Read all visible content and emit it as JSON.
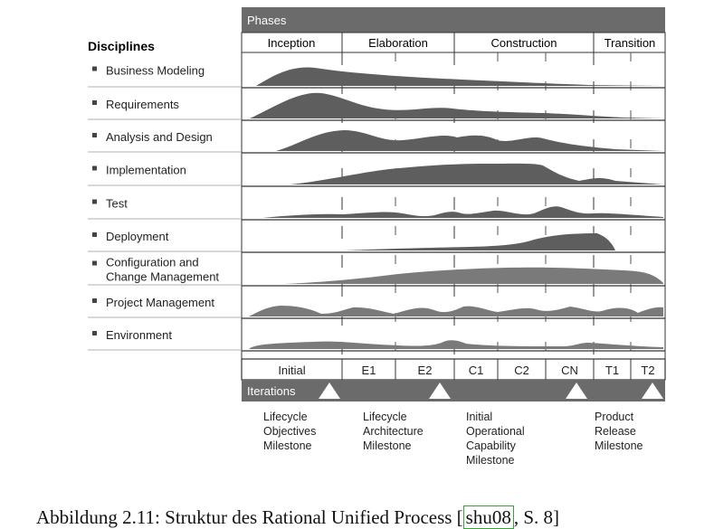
{
  "header": {
    "phases_label": "Phases",
    "disciplines_label": "Disciplines",
    "iterations_label": "Iterations"
  },
  "phases": [
    "Inception",
    "Elaboration",
    "Construction",
    "Transition"
  ],
  "disciplines": [
    {
      "lines": [
        "Business Modeling"
      ]
    },
    {
      "lines": [
        "Requirements"
      ]
    },
    {
      "lines": [
        "Analysis and Design"
      ]
    },
    {
      "lines": [
        "Implementation"
      ]
    },
    {
      "lines": [
        "Test"
      ]
    },
    {
      "lines": [
        "Deployment"
      ]
    },
    {
      "lines": [
        "Configuration and",
        "Change Management"
      ]
    },
    {
      "lines": [
        "Project Management"
      ]
    },
    {
      "lines": [
        "Environment"
      ]
    }
  ],
  "iterations": [
    "Initial",
    "E1",
    "E2",
    "C1",
    "C2",
    "CN",
    "T1",
    "T2"
  ],
  "milestones": [
    {
      "lines": [
        "Lifecycle",
        "Objectives",
        "Milestone"
      ]
    },
    {
      "lines": [
        "Lifecycle",
        "Architecture",
        "Milestone"
      ]
    },
    {
      "lines": [
        "Initial",
        "Operational",
        "Capability",
        "Milestone"
      ]
    },
    {
      "lines": [
        "Product",
        "Release",
        "Milestone"
      ]
    }
  ],
  "caption": {
    "prefix": "Abbildung 2.11: Struktur des Rational Unified Process [",
    "cite": "shu08",
    "suffix": ", S. 8]"
  },
  "colors": {
    "header_bar": "#6b6b6b",
    "curve_fill": "#5e5e5e",
    "curve_fill_light": "#7a7a7a",
    "line": "#333333"
  }
}
